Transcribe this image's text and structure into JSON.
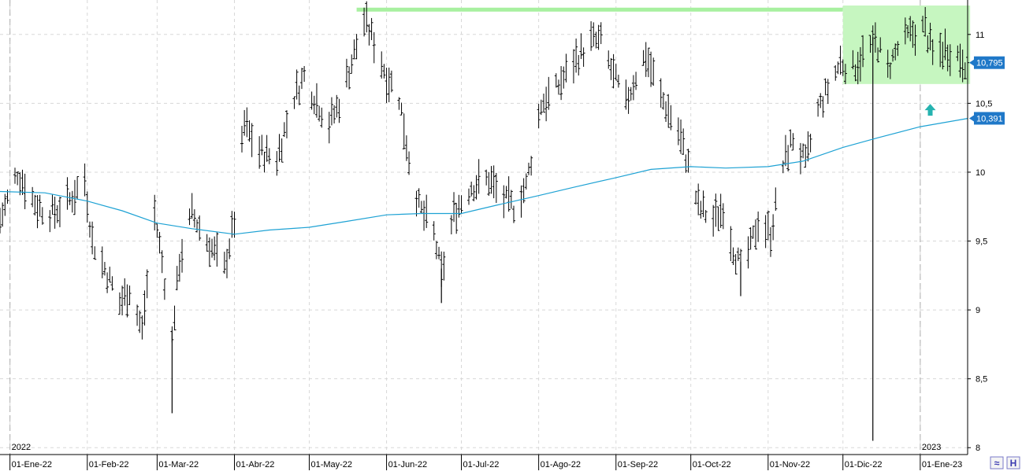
{
  "chart_data": {
    "type": "ohlc",
    "title": "",
    "xlabel": "",
    "ylabel": "",
    "ylim": [
      7.95,
      11.25
    ],
    "y_ticks": [
      {
        "value": 11,
        "label": "11"
      },
      {
        "value": 10.5,
        "label": "10,5"
      },
      {
        "value": 10,
        "label": "10"
      },
      {
        "value": 9.5,
        "label": "9,5"
      },
      {
        "value": 9,
        "label": "9"
      },
      {
        "value": 8.5,
        "label": "8,5"
      },
      {
        "value": 8,
        "label": "8"
      }
    ],
    "x_ticks": [
      {
        "date": "2022-01-01",
        "label": "01-Ene-22"
      },
      {
        "date": "2022-02-01",
        "label": "01-Feb-22"
      },
      {
        "date": "2022-03-01",
        "label": "01-Mar-22"
      },
      {
        "date": "2022-04-01",
        "label": "01-Abr-22"
      },
      {
        "date": "2022-05-01",
        "label": "01-May-22"
      },
      {
        "date": "2022-06-01",
        "label": "01-Jun-22"
      },
      {
        "date": "2022-07-01",
        "label": "01-Jul-22"
      },
      {
        "date": "2022-08-01",
        "label": "01-Ago-22"
      },
      {
        "date": "2022-09-01",
        "label": "01-Sep-22"
      },
      {
        "date": "2022-10-01",
        "label": "01-Oct-22"
      },
      {
        "date": "2022-11-01",
        "label": "01-Nov-22"
      },
      {
        "date": "2022-12-01",
        "label": "01-Dic-22"
      },
      {
        "date": "2023-01-01",
        "label": "01-Ene-23"
      }
    ],
    "year_labels": [
      {
        "date": "2022-01-01",
        "label": "2022"
      },
      {
        "date": "2023-01-01",
        "label": "2023"
      }
    ],
    "x_range": [
      "2021-12-28",
      "2023-01-20"
    ],
    "grid": true,
    "price_series": {
      "style": "ohlc-bars",
      "color": "#000000",
      "anchors": [
        [
          "2021-12-28",
          9.65
        ],
        [
          "2022-01-04",
          10.0
        ],
        [
          "2022-01-12",
          9.75
        ],
        [
          "2022-01-18",
          9.7
        ],
        [
          "2022-01-25",
          9.8
        ],
        [
          "2022-01-31",
          9.95
        ],
        [
          "2022-02-03",
          9.5
        ],
        [
          "2022-02-08",
          9.3
        ],
        [
          "2022-02-14",
          9.05
        ],
        [
          "2022-02-18",
          9.15
        ],
        [
          "2022-02-23",
          8.85
        ],
        [
          "2022-02-28",
          9.7
        ],
        [
          "2022-03-03",
          9.35
        ],
        [
          "2022-03-07",
          8.8
        ],
        [
          "2022-03-10",
          9.35
        ],
        [
          "2022-03-15",
          9.7
        ],
        [
          "2022-03-21",
          9.5
        ],
        [
          "2022-03-28",
          9.3
        ],
        [
          "2022-04-01",
          9.65
        ],
        [
          "2022-04-05",
          10.35
        ],
        [
          "2022-04-11",
          10.15
        ],
        [
          "2022-04-18",
          10.1
        ],
        [
          "2022-04-25",
          10.55
        ],
        [
          "2022-04-29",
          10.7
        ],
        [
          "2022-05-03",
          10.55
        ],
        [
          "2022-05-09",
          10.35
        ],
        [
          "2022-05-13",
          10.5
        ],
        [
          "2022-05-18",
          10.8
        ],
        [
          "2022-05-23",
          11.1
        ],
        [
          "2022-05-27",
          10.95
        ],
        [
          "2022-06-01",
          10.7
        ],
        [
          "2022-06-06",
          10.55
        ],
        [
          "2022-06-10",
          10.1
        ],
        [
          "2022-06-14",
          9.75
        ],
        [
          "2022-06-20",
          9.55
        ],
        [
          "2022-06-23",
          9.25
        ],
        [
          "2022-06-28",
          9.7
        ],
        [
          "2022-07-05",
          9.9
        ],
        [
          "2022-07-12",
          9.95
        ],
        [
          "2022-07-18",
          9.8
        ],
        [
          "2022-07-22",
          9.75
        ],
        [
          "2022-07-27",
          9.9
        ],
        [
          "2022-08-02",
          10.5
        ],
        [
          "2022-08-08",
          10.6
        ],
        [
          "2022-08-15",
          10.8
        ],
        [
          "2022-08-22",
          10.95
        ],
        [
          "2022-08-26",
          10.95
        ],
        [
          "2022-08-31",
          10.7
        ],
        [
          "2022-09-05",
          10.5
        ],
        [
          "2022-09-09",
          10.7
        ],
        [
          "2022-09-13",
          10.85
        ],
        [
          "2022-09-19",
          10.55
        ],
        [
          "2022-09-26",
          10.3
        ],
        [
          "2022-09-30",
          10.05
        ],
        [
          "2022-10-04",
          9.75
        ],
        [
          "2022-10-10",
          9.65
        ],
        [
          "2022-10-14",
          9.75
        ],
        [
          "2022-10-18",
          9.45
        ],
        [
          "2022-10-21",
          9.3
        ],
        [
          "2022-10-25",
          9.45
        ],
        [
          "2022-10-28",
          9.65
        ],
        [
          "2022-11-02",
          9.55
        ],
        [
          "2022-11-07",
          10.05
        ],
        [
          "2022-11-11",
          10.25
        ],
        [
          "2022-11-16",
          10.05
        ],
        [
          "2022-11-21",
          10.45
        ],
        [
          "2022-11-25",
          10.6
        ],
        [
          "2022-11-30",
          10.8
        ],
        [
          "2022-12-05",
          10.75
        ],
        [
          "2022-12-09",
          10.85
        ],
        [
          "2022-12-14",
          10.95
        ],
        [
          "2022-12-19",
          10.75
        ],
        [
          "2022-12-23",
          10.9
        ],
        [
          "2022-12-28",
          11.0
        ],
        [
          "2023-01-03",
          11.05
        ],
        [
          "2023-01-06",
          10.85
        ],
        [
          "2023-01-11",
          10.9
        ],
        [
          "2023-01-16",
          10.85
        ],
        [
          "2023-01-20",
          10.79
        ]
      ],
      "spikes": [
        {
          "date": "2022-03-07",
          "low": 8.25
        },
        {
          "date": "2022-06-23",
          "low": 9.05
        },
        {
          "date": "2022-10-21",
          "low": 9.1
        },
        {
          "date": "2022-12-13",
          "low": 8.05
        }
      ],
      "last_value": 10.795,
      "last_value_label": "10,795"
    },
    "moving_average": {
      "color": "#1ea2d4",
      "points": [
        [
          "2021-12-28",
          9.86
        ],
        [
          "2022-01-15",
          9.85
        ],
        [
          "2022-02-01",
          9.79
        ],
        [
          "2022-02-15",
          9.72
        ],
        [
          "2022-03-01",
          9.63
        ],
        [
          "2022-03-15",
          9.59
        ],
        [
          "2022-04-01",
          9.55
        ],
        [
          "2022-04-15",
          9.58
        ],
        [
          "2022-05-01",
          9.6
        ],
        [
          "2022-05-15",
          9.64
        ],
        [
          "2022-06-01",
          9.69
        ],
        [
          "2022-06-15",
          9.7
        ],
        [
          "2022-07-01",
          9.7
        ],
        [
          "2022-07-15",
          9.76
        ],
        [
          "2022-08-01",
          9.83
        ],
        [
          "2022-08-15",
          9.89
        ],
        [
          "2022-09-01",
          9.96
        ],
        [
          "2022-09-15",
          10.02
        ],
        [
          "2022-10-01",
          10.04
        ],
        [
          "2022-10-15",
          10.03
        ],
        [
          "2022-11-01",
          10.04
        ],
        [
          "2022-11-15",
          10.08
        ],
        [
          "2022-12-01",
          10.18
        ],
        [
          "2022-12-15",
          10.25
        ],
        [
          "2023-01-01",
          10.33
        ],
        [
          "2023-01-20",
          10.39
        ]
      ],
      "last_value": 10.391,
      "last_value_label": "10,391"
    },
    "annotations": {
      "resistance_line": {
        "from": "2022-05-20",
        "to": "2022-12-01",
        "value": 11.18,
        "color": "#a8f0a0"
      },
      "highlight_box": {
        "from": "2022-12-01",
        "to": "2023-01-21",
        "y_low": 10.64,
        "y_high": 11.21,
        "color": "#c6f6c0"
      },
      "arrow": {
        "date": "2023-01-05",
        "value": 10.45,
        "direction": "up",
        "color": "#26b3b0"
      }
    }
  },
  "footer_icons": [
    {
      "name": "chart-style-icon",
      "glyph": "≈"
    },
    {
      "name": "horizontal-scroll-icon",
      "glyph": "H"
    }
  ]
}
